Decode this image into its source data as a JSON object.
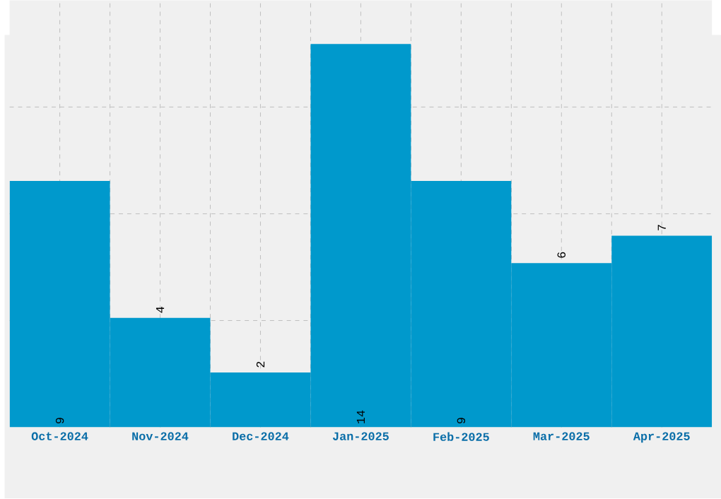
{
  "chart_data": {
    "type": "bar",
    "categories": [
      "Oct-2024",
      "Nov-2024",
      "Dec-2024",
      "Jan-2025",
      "Feb-2025",
      "Mar-2025",
      "Apr-2025"
    ],
    "values": [
      9,
      4,
      2,
      14,
      9,
      6,
      7
    ],
    "color": "#0099cc",
    "ylim": [
      0,
      15.6
    ],
    "yticks": [
      {
        "value": 3.9,
        "label": null
      },
      {
        "value": 7.8,
        "label": null
      },
      {
        "value": 11.7,
        "label": null
      }
    ],
    "grid": true,
    "data_labels": true,
    "tick_labels": "x"
  }
}
